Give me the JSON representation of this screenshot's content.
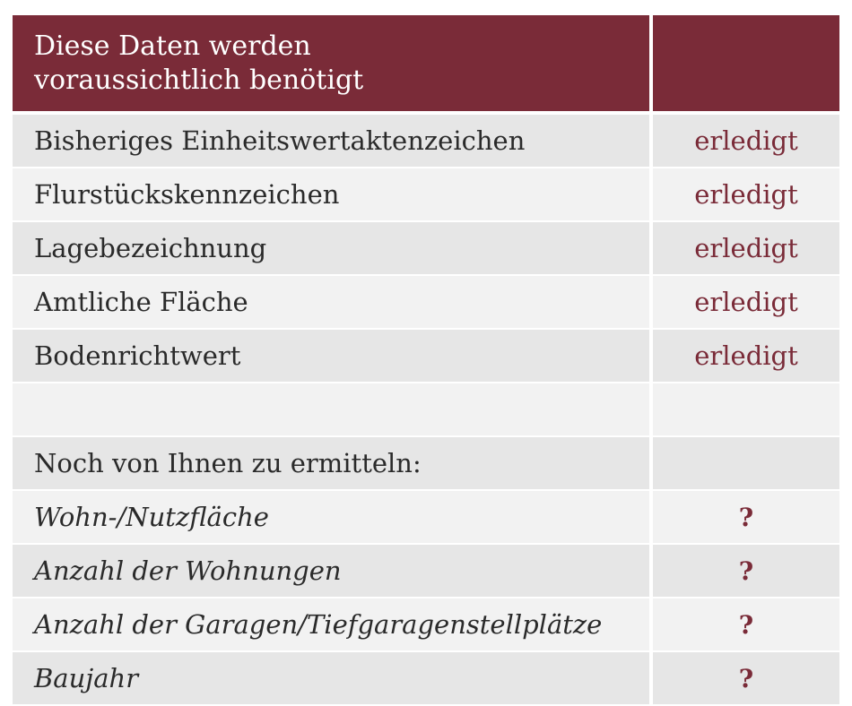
{
  "header": {
    "title_line1": "Diese Daten werden",
    "title_line2": "voraussichtlich benötigt"
  },
  "done_rows": [
    {
      "label": "Bisheriges Einheitswertaktenzeichen",
      "status": "erledigt"
    },
    {
      "label": "Flurstückskennzeichen",
      "status": "erledigt"
    },
    {
      "label": "Lagebezeichnung",
      "status": "erledigt"
    },
    {
      "label": "Amtliche Fläche",
      "status": "erledigt"
    },
    {
      "label": "Bodenrichtwert",
      "status": "erledigt"
    }
  ],
  "section_title": "Noch von Ihnen zu ermitteln:",
  "todo_rows": [
    {
      "label": "Wohn-/Nutzfläche",
      "status": "?"
    },
    {
      "label": "Anzahl der Wohnungen",
      "status": "?"
    },
    {
      "label": "Anzahl der Garagen/Tiefgaragenstellplätze",
      "status": "?"
    },
    {
      "label": "Baujahr",
      "status": "?"
    }
  ],
  "colors": {
    "accent": "#7a2b38",
    "row_dark": "#e6e6e6",
    "row_light": "#f2f2f2"
  }
}
